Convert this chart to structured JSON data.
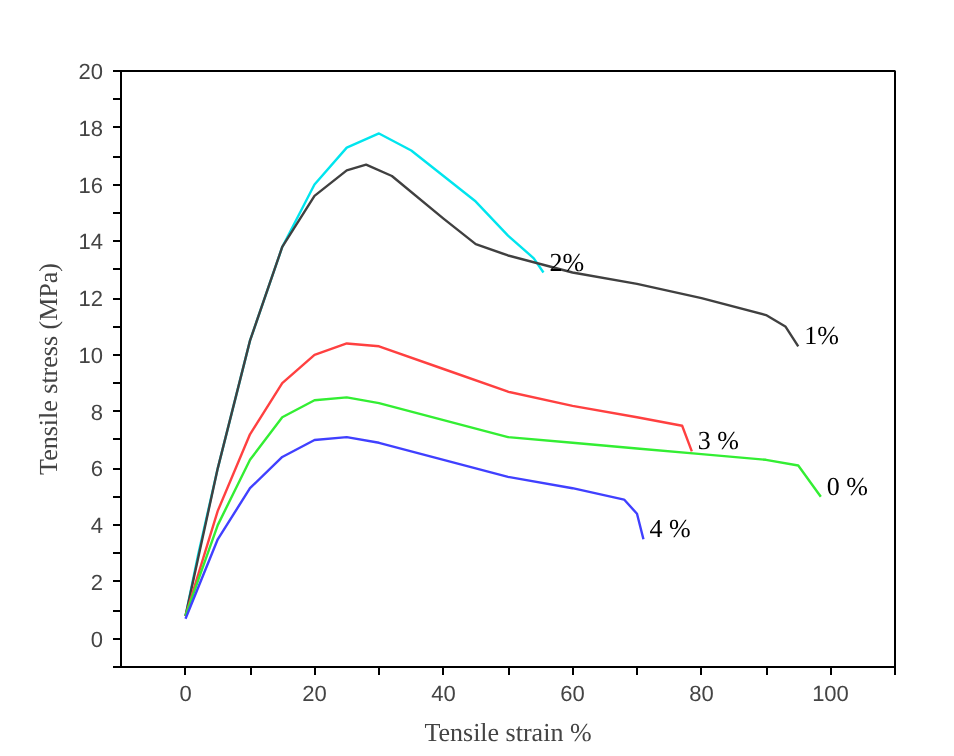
{
  "chart_data": {
    "type": "line",
    "xlabel": "Tensile strain %",
    "ylabel": "Tensile stress (MPa)",
    "xlim": [
      -10,
      110
    ],
    "ylim": [
      -1,
      20
    ],
    "xticks": [
      0,
      {
        "value": 10,
        "label": null
      },
      20,
      {
        "value": 30,
        "label": null
      },
      40,
      {
        "value": 50,
        "label": null
      },
      60,
      {
        "value": 70,
        "label": null
      },
      80,
      {
        "value": 90,
        "label": null
      },
      100,
      {
        "value": 110,
        "label": null
      }
    ],
    "yticks": [
      {
        "value": -1,
        "label": null
      },
      0,
      {
        "value": 1,
        "label": null
      },
      2,
      {
        "value": 3,
        "label": null
      },
      4,
      {
        "value": 5,
        "label": null
      },
      6,
      {
        "value": 7,
        "label": null
      },
      8,
      {
        "value": 9,
        "label": null
      },
      10,
      {
        "value": 11,
        "label": null
      },
      12,
      {
        "value": 13,
        "label": null
      },
      14,
      {
        "value": 15,
        "label": null
      },
      16,
      {
        "value": 17,
        "label": null
      },
      18,
      {
        "value": 19,
        "label": null
      },
      20
    ],
    "grid": false,
    "marker": "none",
    "line_style": "solid",
    "series": [
      {
        "name": "2%",
        "color": "#00e5ee",
        "x": [
          0,
          2,
          5,
          10,
          15,
          20,
          25,
          30,
          35,
          40,
          45,
          50,
          54,
          55.5
        ],
        "values": [
          0.8,
          3,
          6,
          10.5,
          13.8,
          16,
          17.3,
          17.8,
          17.2,
          16.3,
          15.4,
          14.2,
          13.4,
          12.9
        ]
      },
      {
        "name": "1%",
        "color": "#404040",
        "x": [
          0,
          5,
          10,
          15,
          20,
          25,
          28,
          32,
          40,
          45,
          50,
          60,
          70,
          80,
          90,
          93,
          95
        ],
        "values": [
          0.8,
          6,
          10.5,
          13.8,
          15.6,
          16.5,
          16.7,
          16.3,
          14.8,
          13.9,
          13.5,
          12.9,
          12.5,
          12,
          11.4,
          11,
          10.3
        ]
      },
      {
        "name": "3 %",
        "color": "#ff4040",
        "x": [
          0,
          5,
          10,
          15,
          20,
          25,
          30,
          40,
          50,
          60,
          70,
          77,
          78.5
        ],
        "values": [
          0.8,
          4.5,
          7.2,
          9,
          10,
          10.4,
          10.3,
          9.5,
          8.7,
          8.2,
          7.8,
          7.5,
          6.6
        ]
      },
      {
        "name": "0 %",
        "color": "#33ee33",
        "x": [
          0,
          5,
          10,
          15,
          20,
          25,
          30,
          40,
          50,
          60,
          70,
          80,
          90,
          95,
          98.5
        ],
        "values": [
          0.8,
          4,
          6.3,
          7.8,
          8.4,
          8.5,
          8.3,
          7.7,
          7.1,
          6.9,
          6.7,
          6.5,
          6.3,
          6.1,
          5.0
        ]
      },
      {
        "name": "4 %",
        "color": "#4040ff",
        "x": [
          0,
          5,
          10,
          15,
          20,
          25,
          30,
          40,
          50,
          60,
          68,
          70,
          71
        ],
        "values": [
          0.7,
          3.5,
          5.3,
          6.4,
          7,
          7.1,
          6.9,
          6.3,
          5.7,
          5.3,
          4.9,
          4.4,
          3.5
        ]
      }
    ]
  }
}
